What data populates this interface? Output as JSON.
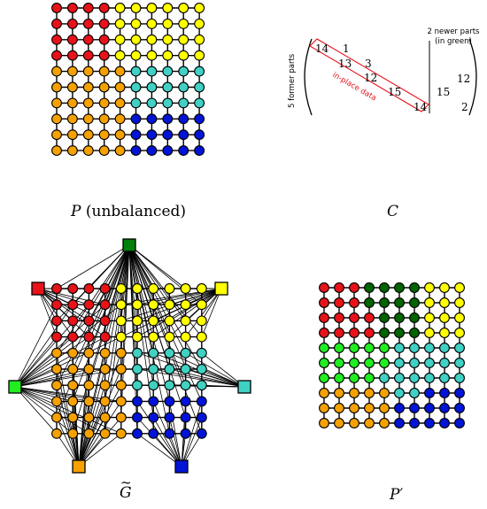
{
  "captions": {
    "p_name": "P",
    "p_note": "(unbalanced)",
    "c_name": "C",
    "g_name": "G",
    "pp_name": "P"
  },
  "matrix": {
    "left_label": "5 former parts",
    "top_label_line1": "2 newer parts",
    "top_label_line2": "(in green)",
    "inplace_label": "in-place data",
    "left_entries": [
      "14",
      "1",
      "13",
      "3",
      "12",
      "15",
      "14"
    ],
    "right_entries": [
      "12",
      "15",
      "2"
    ]
  },
  "colors": {
    "red": "#e8121a",
    "yellow": "#ffff00",
    "orange": "#f5a100",
    "cyan": "#40d0c4",
    "blue": "#0014d6",
    "green": "#00b400",
    "darkgreen": "#006400",
    "lightgreen": "#20ee20",
    "annotation": "#e8121a"
  },
  "grids": {
    "P": [
      "RRRRYYYYYY",
      "RRRRYYYYYY",
      "RRRRYYYYYY",
      "RRRRYYYYYY",
      "OOOOOCCCCC",
      "OOOOOCCCCC",
      "OOOOOCCCCC",
      "OOOOOBBBBB",
      "OOOOOBBBBB",
      "OOOOOBBBBB"
    ],
    "Pprime": [
      "RRRDDDDYYY",
      "RRRDDDDYYY",
      "RRRRDDDYYY",
      "RRRRDDDYYY",
      "LLLLLCCCCC",
      "LLLLLCCCCC",
      "LLLLCCCCCC",
      "OOOOOCCBBB",
      "OOOOOBBBBB",
      "OOOOOBBBBB"
    ]
  },
  "partNodes": [
    {
      "id": "top",
      "color": "#00800a"
    },
    {
      "id": "red",
      "color": "#e8121a"
    },
    {
      "id": "yellow",
      "color": "#ffff00"
    },
    {
      "id": "left-green",
      "color": "#20ee20"
    },
    {
      "id": "cyan",
      "color": "#40d0c4"
    },
    {
      "id": "orange",
      "color": "#f5a100"
    },
    {
      "id": "blue",
      "color": "#0014d6"
    }
  ]
}
